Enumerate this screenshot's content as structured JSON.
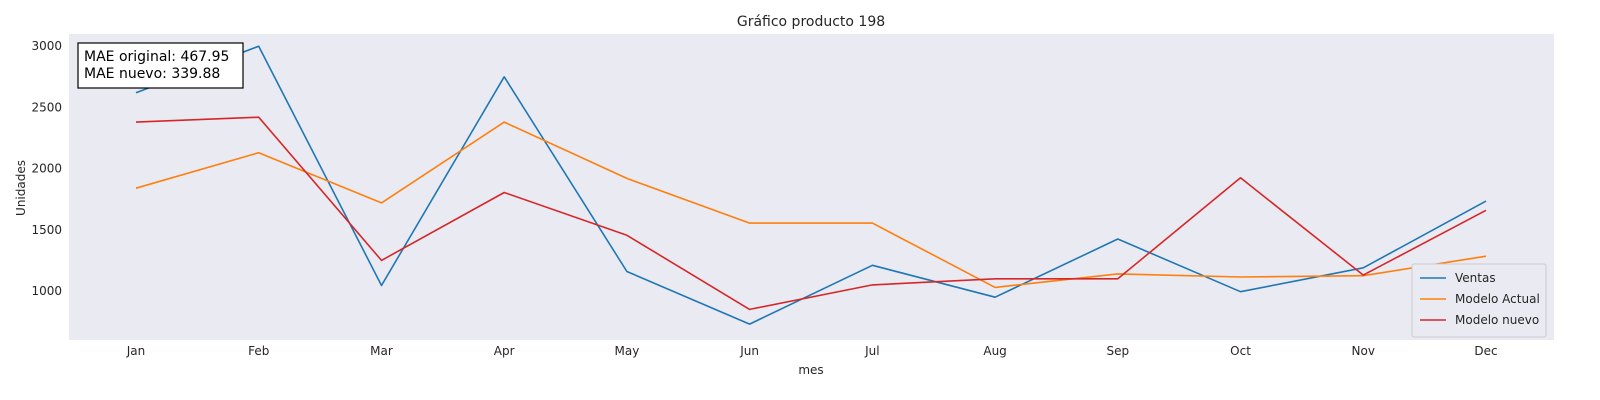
{
  "chart_data": {
    "type": "line",
    "title": "Gráfico producto 198",
    "xlabel": "mes",
    "ylabel": "Unidades",
    "categories": [
      "Jan",
      "Feb",
      "Mar",
      "Apr",
      "May",
      "Jun",
      "Jul",
      "Aug",
      "Sep",
      "Oct",
      "Nov",
      "Dec"
    ],
    "ylim": [
      600,
      3100
    ],
    "yticks": [
      1000,
      1500,
      2000,
      2500,
      3000
    ],
    "grid": false,
    "legend_position": "bottom-right",
    "series": [
      {
        "name": "Ventas",
        "color": "#1f77b4",
        "values": [
          2620,
          3000,
          1045,
          2750,
          1160,
          730,
          1210,
          950,
          1425,
          995,
          1190,
          1735
        ]
      },
      {
        "name": "Modelo Actual",
        "color": "#ff7f0e",
        "values": [
          1840,
          2130,
          1720,
          2380,
          1920,
          1555,
          1555,
          1030,
          1140,
          1115,
          1125,
          1285
        ]
      },
      {
        "name": "Modelo nuevo",
        "color": "#d62728",
        "values": [
          2380,
          2420,
          1250,
          1805,
          1455,
          850,
          1050,
          1100,
          1100,
          1925,
          1130,
          1660
        ]
      }
    ],
    "annotation": {
      "lines": [
        "MAE original: 467.95",
        "MAE nuevo: 339.88"
      ]
    },
    "plot_background": "#eaeaf2"
  }
}
